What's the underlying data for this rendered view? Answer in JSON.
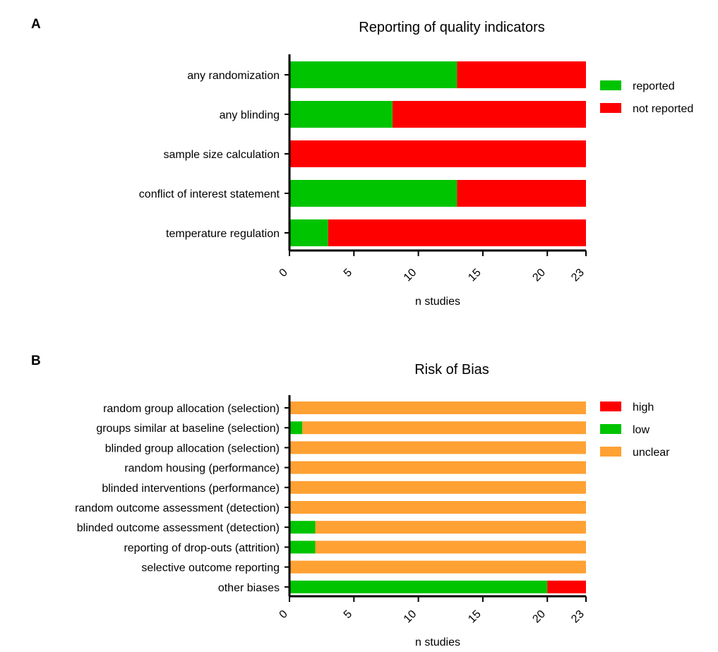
{
  "chart_data": [
    {
      "panel": "A",
      "type": "bar",
      "orientation": "horizontal",
      "stacked": true,
      "title": "Reporting of quality indicators",
      "xlabel": "n studies",
      "ylabel": "",
      "xlim": [
        0,
        23
      ],
      "xticks": [
        0,
        5,
        10,
        15,
        20,
        23
      ],
      "categories": [
        "any randomization",
        "any blinding",
        "sample size calculation",
        "conflict of interest statement",
        "temperature regulation"
      ],
      "series": [
        {
          "name": "reported",
          "color": "#00c400",
          "values": [
            13,
            8,
            0,
            13,
            3
          ]
        },
        {
          "name": "not reported",
          "color": "#ff0000",
          "values": [
            10,
            15,
            23,
            10,
            20
          ]
        }
      ],
      "legend_position": "right",
      "grid": false
    },
    {
      "panel": "B",
      "type": "bar",
      "orientation": "horizontal",
      "stacked": true,
      "title": "Risk of Bias",
      "xlabel": "n studies",
      "ylabel": "",
      "xlim": [
        0,
        23
      ],
      "xticks": [
        0,
        5,
        10,
        15,
        20,
        23
      ],
      "categories": [
        "random group allocation (selection)",
        "groups similar at baseline (selection)",
        "blinded group allocation (selection)",
        "random housing (performance)",
        "blinded interventions (performance)",
        "random outcome assessment (detection)",
        "blinded outcome assessment (detection)",
        "reporting of drop-outs (attrition)",
        "selective outcome reporting",
        "other biases"
      ],
      "series": [
        {
          "name": "high",
          "color": "#ff0000",
          "values": [
            0,
            0,
            0,
            0,
            0,
            0,
            0,
            0,
            0,
            3
          ]
        },
        {
          "name": "low",
          "color": "#00c400",
          "values": [
            0,
            1,
            0,
            0,
            0,
            0,
            2,
            2,
            0,
            20
          ]
        },
        {
          "name": "unclear",
          "color": "#ffa133",
          "values": [
            23,
            22,
            23,
            23,
            23,
            23,
            21,
            21,
            23,
            0
          ]
        }
      ],
      "stack_order": [
        "low",
        "high",
        "unclear"
      ],
      "legend_position": "right",
      "grid": false
    }
  ]
}
